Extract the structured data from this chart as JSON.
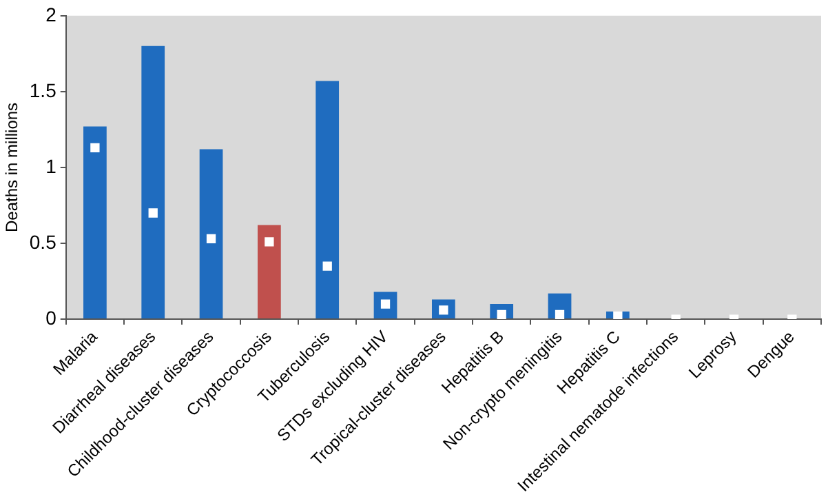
{
  "chart_data": {
    "type": "bar",
    "ylabel": "Deaths in millions",
    "categories": [
      "Malaria",
      "Diarrheal diseases",
      "Childhood-cluster diseases",
      "Cryptococcosis",
      "Tuberculosis",
      "STDs excluding HIV",
      "Tropical-cluster diseases",
      "Hepatitis B",
      "Non-crypto meningitis",
      "Hepatitis C",
      "Intestinal nematode infections",
      "Leprosy",
      "Dengue"
    ],
    "series": [
      {
        "colors": [
          "#1f6cbf",
          "#1f6cbf",
          "#1f6cbf",
          "#c0504d",
          "#1f6cbf",
          "#1f6cbf",
          "#1f6cbf",
          "#1f6cbf",
          "#1f6cbf",
          "#1f6cbf",
          "#1f6cbf",
          "#1f6cbf",
          "#1f6cbf"
        ],
        "values": [
          1.27,
          1.8,
          1.12,
          0.62,
          1.57,
          0.18,
          0.13,
          0.1,
          0.17,
          0.05,
          null,
          null,
          null
        ]
      },
      {
        "type": "scatter",
        "color": "#ffffff",
        "x": [
          "Malaria",
          "Diarrheal diseases",
          "Childhood-cluster diseases",
          "Cryptococcosis",
          "Tuberculosis",
          "STDs excluding HIV",
          "Tropical-cluster diseases",
          "Hepatitis B",
          "Non-crypto meningitis",
          "Hepatitis C",
          "Intestinal nematode infections",
          "Leprosy",
          "Dengue"
        ],
        "values": [
          1.13,
          0.7,
          0.53,
          0.51,
          0.35,
          0.1,
          0.06,
          0.03,
          0.03,
          0.02,
          0,
          0,
          0
        ]
      }
    ],
    "ylim": [
      0,
      2
    ],
    "yticks": [
      0,
      0.5,
      1,
      1.5,
      2
    ],
    "grid": false,
    "legend": false,
    "marker": "square"
  }
}
